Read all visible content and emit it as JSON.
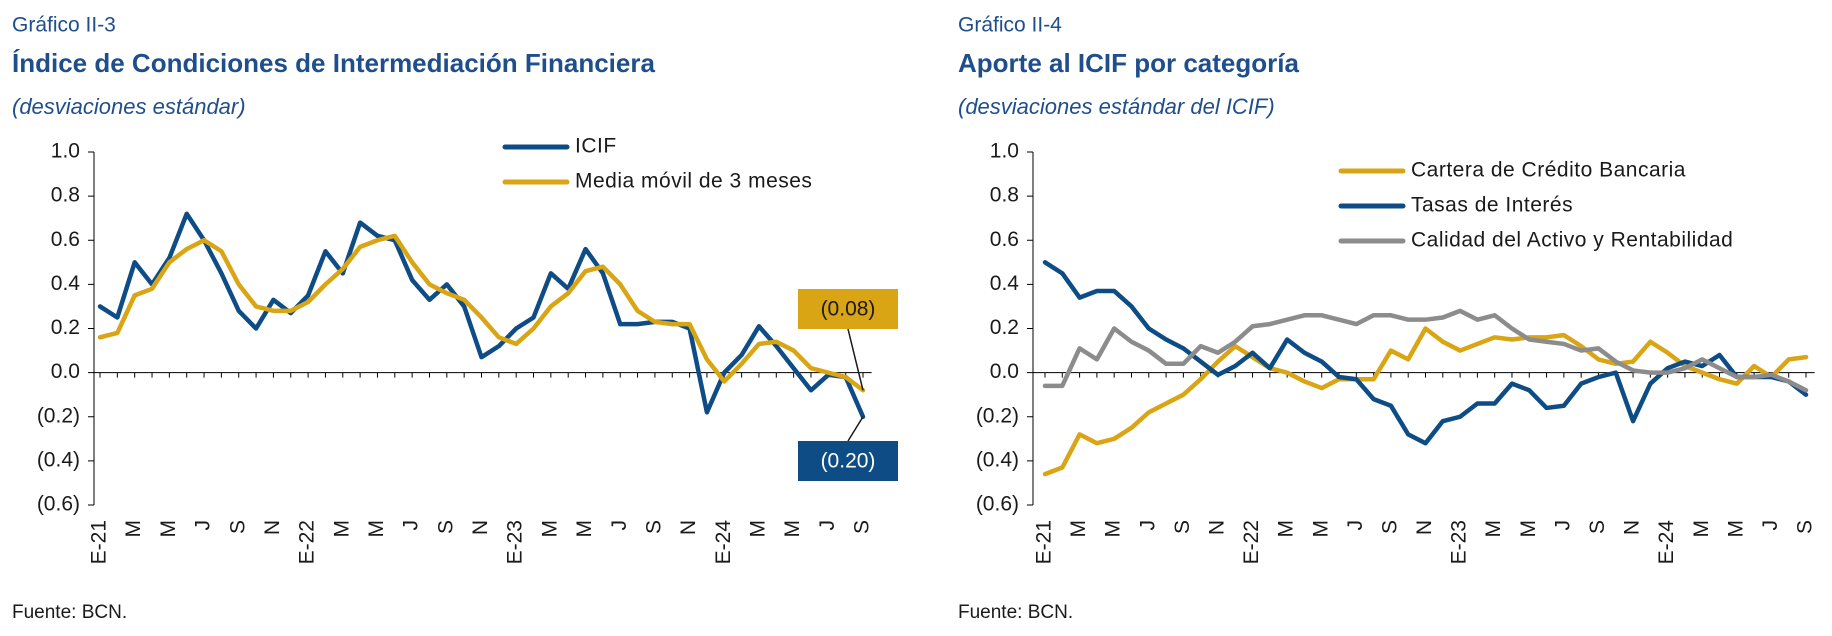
{
  "chart_data": [
    {
      "type": "line",
      "label": "Gráfico II-3",
      "title": "Índice de Condiciones de Intermediación Financiera",
      "subtitle": "(desviaciones estándar)",
      "source": "Fuente: BCN.",
      "categories": [
        "E-21",
        null,
        "M",
        null,
        "M",
        null,
        "J",
        null,
        "S",
        null,
        "N",
        null,
        "E-22",
        null,
        "M",
        null,
        "M",
        null,
        "J",
        null,
        "S",
        null,
        "N",
        null,
        "E-23",
        null,
        "M",
        null,
        "M",
        null,
        "J",
        null,
        "S",
        null,
        "N",
        null,
        "E-24",
        null,
        "M",
        null,
        "M",
        null,
        "J",
        null,
        "S"
      ],
      "ylim": [
        -0.6,
        1.0
      ],
      "yticks": [
        {
          "value": -0.6,
          "label": "(0.6)"
        },
        {
          "value": -0.4,
          "label": "(0.4)"
        },
        {
          "value": -0.2,
          "label": "(0.2)"
        },
        {
          "value": 0,
          "label": "0.0"
        },
        0.2,
        0.4,
        0.6,
        0.8,
        {
          "value": 1,
          "label": "1.0"
        }
      ],
      "legend": "top-right",
      "series": [
        {
          "name": "ICIF",
          "color": "#0e4c85",
          "label_color": "#ffffff",
          "values": [
            0.3,
            0.25,
            0.5,
            0.4,
            0.52,
            0.72,
            0.6,
            0.45,
            0.28,
            0.2,
            0.33,
            0.27,
            0.35,
            0.55,
            0.45,
            0.68,
            0.62,
            0.6,
            0.42,
            0.33,
            0.4,
            0.3,
            0.07,
            0.12,
            0.2,
            0.25,
            0.45,
            0.38,
            0.56,
            0.45,
            0.22,
            0.22,
            0.23,
            0.23,
            0.2,
            -0.18,
            0.0,
            0.08,
            0.21,
            0.12,
            0.02,
            -0.08,
            -0.01,
            -0.02,
            -0.2
          ],
          "value_labels": [
            null,
            null,
            null,
            null,
            null,
            null,
            null,
            null,
            null,
            null,
            null,
            null,
            null,
            null,
            null,
            null,
            null,
            null,
            null,
            null,
            null,
            null,
            null,
            null,
            null,
            null,
            null,
            null,
            null,
            null,
            null,
            null,
            null,
            null,
            null,
            null,
            null,
            null,
            null,
            null,
            null,
            null,
            null,
            null,
            "(0.20)"
          ]
        },
        {
          "name": "Media móvil de 3 meses",
          "color": "#d9a514",
          "label_color": "#1a1a1a",
          "values": [
            0.16,
            0.18,
            0.35,
            0.38,
            0.5,
            0.56,
            0.6,
            0.55,
            0.4,
            0.3,
            0.28,
            0.28,
            0.32,
            0.4,
            0.47,
            0.57,
            0.6,
            0.62,
            0.5,
            0.4,
            0.36,
            0.33,
            0.25,
            0.16,
            0.13,
            0.2,
            0.3,
            0.36,
            0.46,
            0.48,
            0.4,
            0.28,
            0.23,
            0.22,
            0.22,
            0.06,
            -0.04,
            0.04,
            0.13,
            0.14,
            0.1,
            0.02,
            0.0,
            -0.02,
            -0.08
          ],
          "value_labels": [
            null,
            null,
            null,
            null,
            null,
            null,
            null,
            null,
            null,
            null,
            null,
            null,
            null,
            null,
            null,
            null,
            null,
            null,
            null,
            null,
            null,
            null,
            null,
            null,
            null,
            null,
            null,
            null,
            null,
            null,
            null,
            null,
            null,
            null,
            null,
            null,
            null,
            null,
            null,
            null,
            null,
            null,
            null,
            null,
            "(0.08)"
          ]
        }
      ]
    },
    {
      "type": "line",
      "label": "Gráfico II-4",
      "title": "Aporte al ICIF por categoría",
      "subtitle": "(desviaciones estándar del ICIF)",
      "source": "Fuente: BCN.",
      "categories": [
        "E-21",
        null,
        "M",
        null,
        "M",
        null,
        "J",
        null,
        "S",
        null,
        "N",
        null,
        "E-22",
        null,
        "M",
        null,
        "M",
        null,
        "J",
        null,
        "S",
        null,
        "N",
        null,
        "E-23",
        null,
        "M",
        null,
        "M",
        null,
        "J",
        null,
        "S",
        null,
        "N",
        null,
        "E-24",
        null,
        "M",
        null,
        "M",
        null,
        "J",
        null,
        "S"
      ],
      "ylim": [
        -0.6,
        1.0
      ],
      "yticks": [
        {
          "value": -0.6,
          "label": "(0.6)"
        },
        {
          "value": -0.4,
          "label": "(0.4)"
        },
        {
          "value": -0.2,
          "label": "(0.2)"
        },
        {
          "value": 0,
          "label": "0.0"
        },
        0.2,
        0.4,
        0.6,
        0.8,
        {
          "value": 1,
          "label": "1.0"
        }
      ],
      "legend": "top-right",
      "series": [
        {
          "name": "Cartera de Crédito Bancaria",
          "color": "#d9a514",
          "values": [
            -0.46,
            -0.43,
            -0.28,
            -0.32,
            -0.3,
            -0.25,
            -0.18,
            -0.14,
            -0.1,
            -0.03,
            0.05,
            0.12,
            0.07,
            0.02,
            0.0,
            -0.04,
            -0.07,
            -0.03,
            -0.03,
            -0.03,
            0.1,
            0.06,
            0.2,
            0.14,
            0.1,
            0.13,
            0.16,
            0.15,
            0.16,
            0.16,
            0.17,
            0.12,
            0.06,
            0.04,
            0.05,
            0.14,
            0.09,
            0.03,
            0.0,
            -0.03,
            -0.05,
            0.03,
            -0.02,
            0.06,
            0.07
          ]
        },
        {
          "name": "Tasas de Interés",
          "color": "#0e4c85",
          "values": [
            0.5,
            0.45,
            0.34,
            0.37,
            0.37,
            0.3,
            0.2,
            0.15,
            0.11,
            0.05,
            -0.01,
            0.03,
            0.09,
            0.02,
            0.15,
            0.09,
            0.05,
            -0.02,
            -0.03,
            -0.12,
            -0.15,
            -0.28,
            -0.32,
            -0.22,
            -0.2,
            -0.14,
            -0.14,
            -0.05,
            -0.08,
            -0.16,
            -0.15,
            -0.05,
            -0.02,
            0.0,
            -0.22,
            -0.05,
            0.02,
            0.05,
            0.03,
            0.08,
            -0.02,
            -0.02,
            -0.02,
            -0.04,
            -0.1
          ]
        },
        {
          "name": "Calidad del Activo y Rentabilidad",
          "color": "#8c8c8c",
          "values": [
            -0.06,
            -0.06,
            0.11,
            0.06,
            0.2,
            0.14,
            0.1,
            0.04,
            0.04,
            0.12,
            0.09,
            0.14,
            0.21,
            0.22,
            0.24,
            0.26,
            0.26,
            0.24,
            0.22,
            0.26,
            0.26,
            0.24,
            0.24,
            0.25,
            0.28,
            0.24,
            0.26,
            0.2,
            0.15,
            0.14,
            0.13,
            0.1,
            0.11,
            0.05,
            0.01,
            0.0,
            0.0,
            0.02,
            0.06,
            0.02,
            -0.02,
            -0.02,
            -0.01,
            -0.04,
            -0.08
          ]
        }
      ]
    }
  ]
}
